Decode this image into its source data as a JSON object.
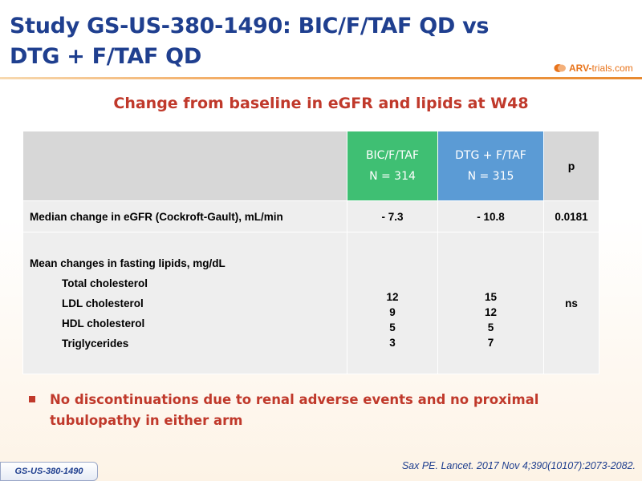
{
  "header": {
    "title_line1": "Study GS-US-380-1490: BIC/F/TAF QD vs",
    "title_line2": "DTG + F/TAF QD",
    "logo_text_bold": "ARV-",
    "logo_text": "trials.com"
  },
  "subtitle": "Change from baseline in eGFR and lipids at W48",
  "table": {
    "arm1": {
      "name": "BIC/F/TAF",
      "n": "N = 314",
      "color": "#3fbf73"
    },
    "arm2": {
      "name": "DTG + F/TAF",
      "n": "N = 315",
      "color": "#5b9bd5"
    },
    "p_header": "p",
    "egfr": {
      "label": "Median change in eGFR (Cockroft-Gault), mL/min",
      "arm1": "- 7.3",
      "arm2": "- 10.8",
      "p": "0.0181"
    },
    "lipids": {
      "label": "Mean changes in fasting lipids, mg/dL",
      "items": [
        "Total cholesterol",
        "LDL cholesterol",
        "HDL cholesterol",
        "Triglycerides"
      ],
      "arm1": [
        "12",
        "9",
        "5",
        "3"
      ],
      "arm2": [
        "15",
        "12",
        "5",
        "7"
      ],
      "p": "ns"
    }
  },
  "bullet": "No discontinuations due to renal adverse events and no proximal tubulopathy in either arm",
  "reference": "Sax PE. Lancet. 2017 Nov 4;390(10107):2073-2082.",
  "study_tag": "GS-US-380-1490"
}
